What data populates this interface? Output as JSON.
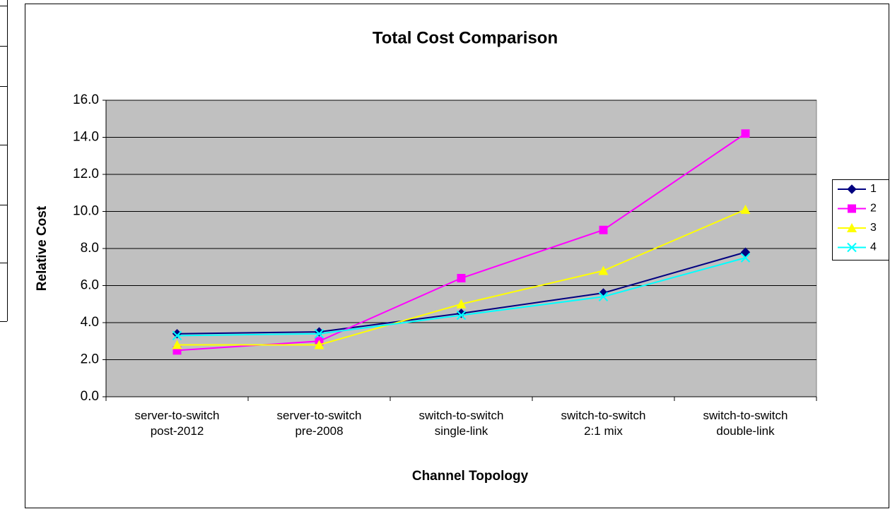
{
  "chart_data": {
    "type": "line",
    "title": "Total Cost Comparison",
    "x_label": "Channel Topology",
    "y_label": "Relative Cost",
    "categories": [
      "server-to-switch\npost-2012",
      "server-to-switch\npre-2008",
      "switch-to-switch\nsingle-link",
      "switch-to-switch\n2:1 mix",
      "switch-to-switch\ndouble-link"
    ],
    "series": [
      {
        "name": "1",
        "color": "#000080",
        "marker": "diamond",
        "values": [
          3.4,
          3.5,
          4.5,
          5.6,
          7.8
        ]
      },
      {
        "name": "2",
        "color": "#ff00ff",
        "marker": "square",
        "values": [
          2.5,
          3.0,
          6.4,
          9.0,
          14.2
        ]
      },
      {
        "name": "3",
        "color": "#ffff00",
        "marker": "triangle",
        "values": [
          2.8,
          2.8,
          5.0,
          6.8,
          10.1
        ]
      },
      {
        "name": "4",
        "color": "#00ffff",
        "marker": "x",
        "values": [
          3.3,
          3.4,
          4.4,
          5.4,
          7.5
        ]
      }
    ],
    "ylim": [
      0,
      16
    ],
    "yticks": [
      {
        "value": 0,
        "label": "0.0"
      },
      {
        "value": 2,
        "label": "2.0"
      },
      {
        "value": 4,
        "label": "4.0"
      },
      {
        "value": 6,
        "label": "6.0"
      },
      {
        "value": 8,
        "label": "8.0"
      },
      {
        "value": 10,
        "label": "10.0"
      },
      {
        "value": 12,
        "label": "12.0"
      },
      {
        "value": 14,
        "label": "14.0"
      },
      {
        "value": 16,
        "label": "16.0"
      }
    ],
    "grid": true,
    "legend": "right"
  }
}
